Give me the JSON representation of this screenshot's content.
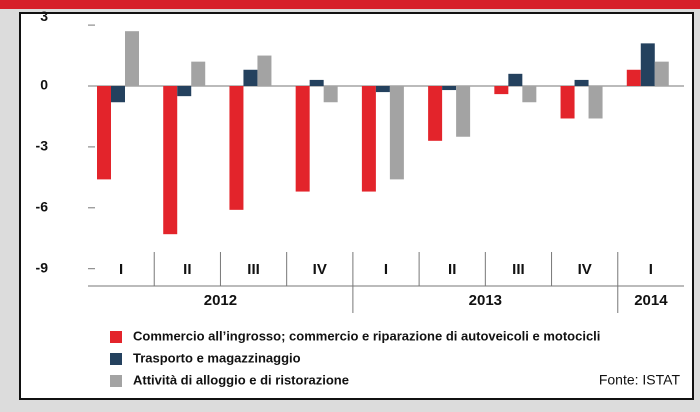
{
  "chart_data": {
    "type": "bar",
    "categories": [
      "I",
      "II",
      "III",
      "IV",
      "I",
      "II",
      "III",
      "IV",
      "I"
    ],
    "groups": [
      {
        "label": "2012",
        "size": 4
      },
      {
        "label": "2013",
        "size": 4
      },
      {
        "label": "2014",
        "size": 1
      }
    ],
    "series": [
      {
        "name": "Commercio all’ingrosso; commercio e riparazione di autoveicoli e motocicli",
        "color": "#e3242b",
        "values": [
          -4.6,
          -7.3,
          -6.1,
          -5.2,
          -5.2,
          -2.7,
          -0.4,
          -1.6,
          0.8
        ]
      },
      {
        "name": "Trasporto e magazzinaggio",
        "color": "#24415e",
        "values": [
          -0.8,
          -0.5,
          0.8,
          0.3,
          -0.3,
          -0.2,
          0.6,
          0.3,
          2.1
        ]
      },
      {
        "name": "Attività di alloggio e di ristorazione",
        "color": "#a3a3a3",
        "values": [
          2.7,
          1.2,
          1.5,
          -0.8,
          -4.6,
          -2.5,
          -0.8,
          -1.6,
          1.2
        ]
      }
    ],
    "ylim": [
      -9,
      3
    ],
    "yticks": [
      3,
      0,
      -3,
      -6,
      -9
    ],
    "source": "Fonte: ISTAT"
  }
}
